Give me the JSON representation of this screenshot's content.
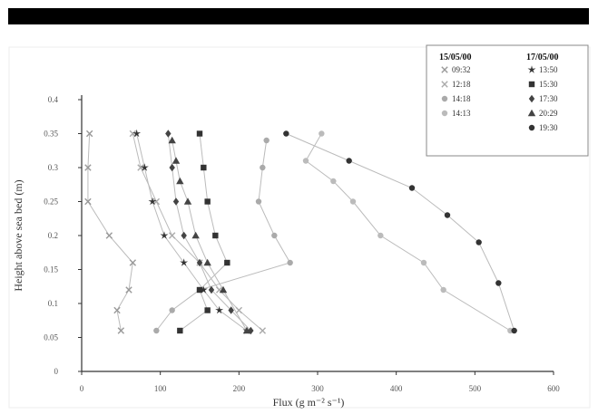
{
  "header_bar": {
    "color": "#000000"
  },
  "chart_data": {
    "type": "scatter",
    "xlabel": "Flux (g m⁻² s⁻¹)",
    "ylabel": "Height above sea bed (m)",
    "xlim": [
      0,
      600
    ],
    "ylim": [
      0,
      0.4
    ],
    "x_ticks": [
      "0",
      "100",
      "200",
      "300",
      "400",
      "500",
      "600"
    ],
    "y_ticks": [
      "0",
      "0.05",
      "0.1",
      "0.15",
      "0.2",
      "0.25",
      "0.3",
      "0.35",
      "0.4"
    ],
    "legend": {
      "placement": "top-right",
      "group_titles": [
        "15/05/00",
        "17/05/00"
      ]
    },
    "series": [
      {
        "name": "09:32",
        "group": 0,
        "marker": "x",
        "color": "#999999",
        "points": [
          [
            10,
            0.35
          ],
          [
            8,
            0.3
          ],
          [
            8,
            0.25
          ],
          [
            35,
            0.2
          ],
          [
            65,
            0.16
          ],
          [
            60,
            0.12
          ],
          [
            45,
            0.09
          ],
          [
            50,
            0.06
          ]
        ]
      },
      {
        "name": "12:18",
        "group": 0,
        "marker": "x",
        "color": "#aaaaaa",
        "points": [
          [
            65,
            0.35
          ],
          [
            75,
            0.3
          ],
          [
            95,
            0.25
          ],
          [
            115,
            0.2
          ],
          [
            150,
            0.16
          ],
          [
            175,
            0.12
          ],
          [
            200,
            0.09
          ],
          [
            230,
            0.06
          ]
        ]
      },
      {
        "name": "14:18",
        "group": 0,
        "marker": "o",
        "color": "#aaaaaa",
        "points": [
          [
            235,
            0.34
          ],
          [
            230,
            0.3
          ],
          [
            225,
            0.25
          ],
          [
            245,
            0.2
          ],
          [
            265,
            0.16
          ],
          [
            150,
            0.12
          ],
          [
            115,
            0.09
          ],
          [
            95,
            0.06
          ]
        ]
      },
      {
        "name": "14:13",
        "group": 0,
        "marker": "o",
        "color": "#bbbbbb",
        "points": [
          [
            305,
            0.35
          ],
          [
            285,
            0.31
          ],
          [
            320,
            0.28
          ],
          [
            345,
            0.25
          ],
          [
            380,
            0.2
          ],
          [
            435,
            0.16
          ],
          [
            460,
            0.12
          ],
          [
            545,
            0.06
          ]
        ]
      },
      {
        "name": "13:50",
        "group": 1,
        "marker": "star",
        "color": "#333333",
        "points": [
          [
            70,
            0.35
          ],
          [
            80,
            0.3
          ],
          [
            90,
            0.25
          ],
          [
            105,
            0.2
          ],
          [
            130,
            0.16
          ],
          [
            155,
            0.12
          ],
          [
            175,
            0.09
          ],
          [
            210,
            0.06
          ]
        ]
      },
      {
        "name": "15:30",
        "group": 1,
        "marker": "square",
        "color": "#333333",
        "points": [
          [
            150,
            0.35
          ],
          [
            155,
            0.3
          ],
          [
            160,
            0.25
          ],
          [
            170,
            0.2
          ],
          [
            185,
            0.16
          ],
          [
            150,
            0.12
          ],
          [
            160,
            0.09
          ],
          [
            125,
            0.06
          ]
        ]
      },
      {
        "name": "17:30",
        "group": 1,
        "marker": "diamond",
        "color": "#444444",
        "points": [
          [
            110,
            0.35
          ],
          [
            115,
            0.3
          ],
          [
            120,
            0.25
          ],
          [
            130,
            0.2
          ],
          [
            150,
            0.16
          ],
          [
            165,
            0.12
          ],
          [
            190,
            0.09
          ],
          [
            215,
            0.06
          ]
        ]
      },
      {
        "name": "20:29",
        "group": 1,
        "marker": "triangle",
        "color": "#444444",
        "points": [
          [
            115,
            0.34
          ],
          [
            120,
            0.31
          ],
          [
            125,
            0.28
          ],
          [
            135,
            0.25
          ],
          [
            145,
            0.2
          ],
          [
            160,
            0.16
          ],
          [
            180,
            0.12
          ],
          [
            210,
            0.06
          ]
        ]
      },
      {
        "name": "19:30",
        "group": 1,
        "marker": "o",
        "color": "#333333",
        "points": [
          [
            260,
            0.35
          ],
          [
            340,
            0.31
          ],
          [
            420,
            0.27
          ],
          [
            465,
            0.23
          ],
          [
            505,
            0.19
          ],
          [
            530,
            0.13
          ],
          [
            550,
            0.06
          ]
        ]
      }
    ]
  }
}
